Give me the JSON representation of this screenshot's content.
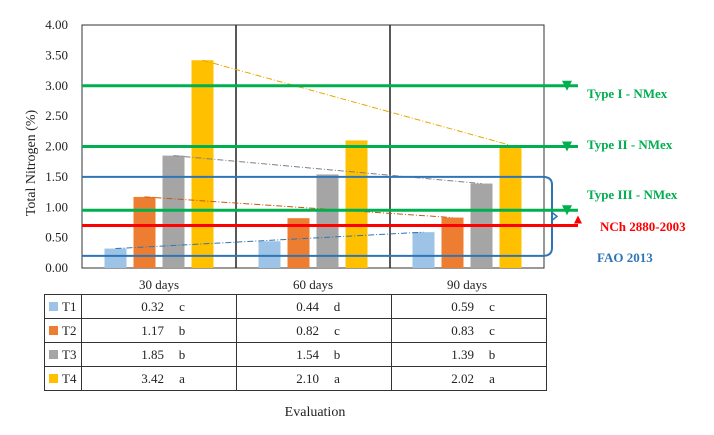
{
  "chart_data": {
    "type": "bar",
    "ylabel": "Total Nitrogen (%)",
    "xlabel": "Evaluation",
    "ylim": [
      0,
      4
    ],
    "yticks": [
      "0.00",
      "0.50",
      "1.00",
      "1.50",
      "2.00",
      "2.50",
      "3.00",
      "3.50",
      "4.00"
    ],
    "categories": [
      "30 days",
      "60 days",
      "90 days"
    ],
    "series": [
      {
        "name": "T1",
        "color": "#9dc3e6",
        "values": [
          0.32,
          0.44,
          0.59
        ],
        "letters": [
          "c",
          "d",
          "c"
        ]
      },
      {
        "name": "T2",
        "color": "#ed7d31",
        "values": [
          1.17,
          0.82,
          0.83
        ],
        "letters": [
          "b",
          "c",
          "c"
        ]
      },
      {
        "name": "T3",
        "color": "#a5a5a5",
        "values": [
          1.85,
          1.54,
          1.39
        ],
        "letters": [
          "b",
          "b",
          "b"
        ]
      },
      {
        "name": "T4",
        "color": "#ffc000",
        "values": [
          3.42,
          2.1,
          2.02
        ],
        "letters": [
          "a",
          "a",
          "a"
        ]
      }
    ],
    "reference_lines": [
      {
        "label": "Type I - NMex",
        "value": 3.0,
        "color": "#00b050"
      },
      {
        "label": "Type II - NMex",
        "value": 2.0,
        "color": "#00b050"
      },
      {
        "label": "Type III - NMex",
        "value": 0.95,
        "color": "#00b050"
      },
      {
        "label": "NCh 2880-2003",
        "value": 0.7,
        "color": "#ff0000"
      }
    ],
    "range_band": {
      "label": "FAO 2013",
      "from": 0.2,
      "to": 1.5,
      "color": "#2e75b6"
    }
  }
}
